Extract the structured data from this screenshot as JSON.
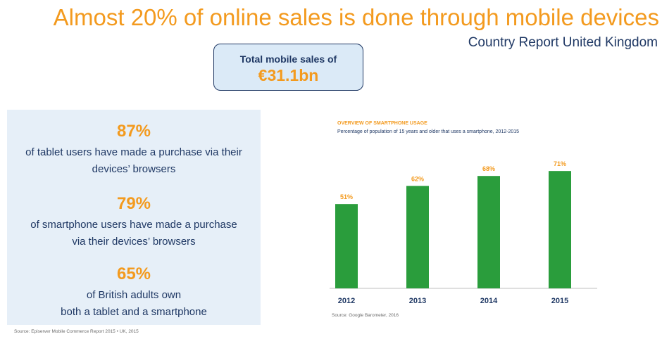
{
  "header": {
    "title": "Almost 20% of online sales is done through mobile devices",
    "subtitle": "Country Report United Kingdom"
  },
  "kpi": {
    "label": "Total mobile sales of",
    "value": "€31.1bn"
  },
  "stats": [
    {
      "value": "87%",
      "line1": "of tablet users have made a purchase via their",
      "line2": "devices’ browsers"
    },
    {
      "value": "79%",
      "line1": "of smartphone users have made a purchase",
      "line2": "via their devices’ browsers"
    },
    {
      "value": "65%",
      "line1": "of British adults own",
      "line2": "both a tablet and a smartphone"
    }
  ],
  "source_left": "Source: Episerver Mobile Commerce Report 2015 • UK, 2015",
  "chart_data": {
    "type": "bar",
    "title": "OVERVIEW OF SMARTPHONE USAGE",
    "subtitle": "Percentage of population of 15 years and older that uses a smartphone, 2012-2015",
    "categories": [
      "2012",
      "2013",
      "2014",
      "2015"
    ],
    "values": [
      51,
      62,
      68,
      71
    ],
    "data_labels": [
      "51%",
      "62%",
      "68%",
      "71%"
    ],
    "xlabel": "",
    "ylabel": "",
    "ylim": [
      0,
      100
    ],
    "grid": false,
    "bar_color": "#2a9d3c",
    "label_color": "#f39a1e",
    "source": "Source: Google Barometer, 2016"
  }
}
